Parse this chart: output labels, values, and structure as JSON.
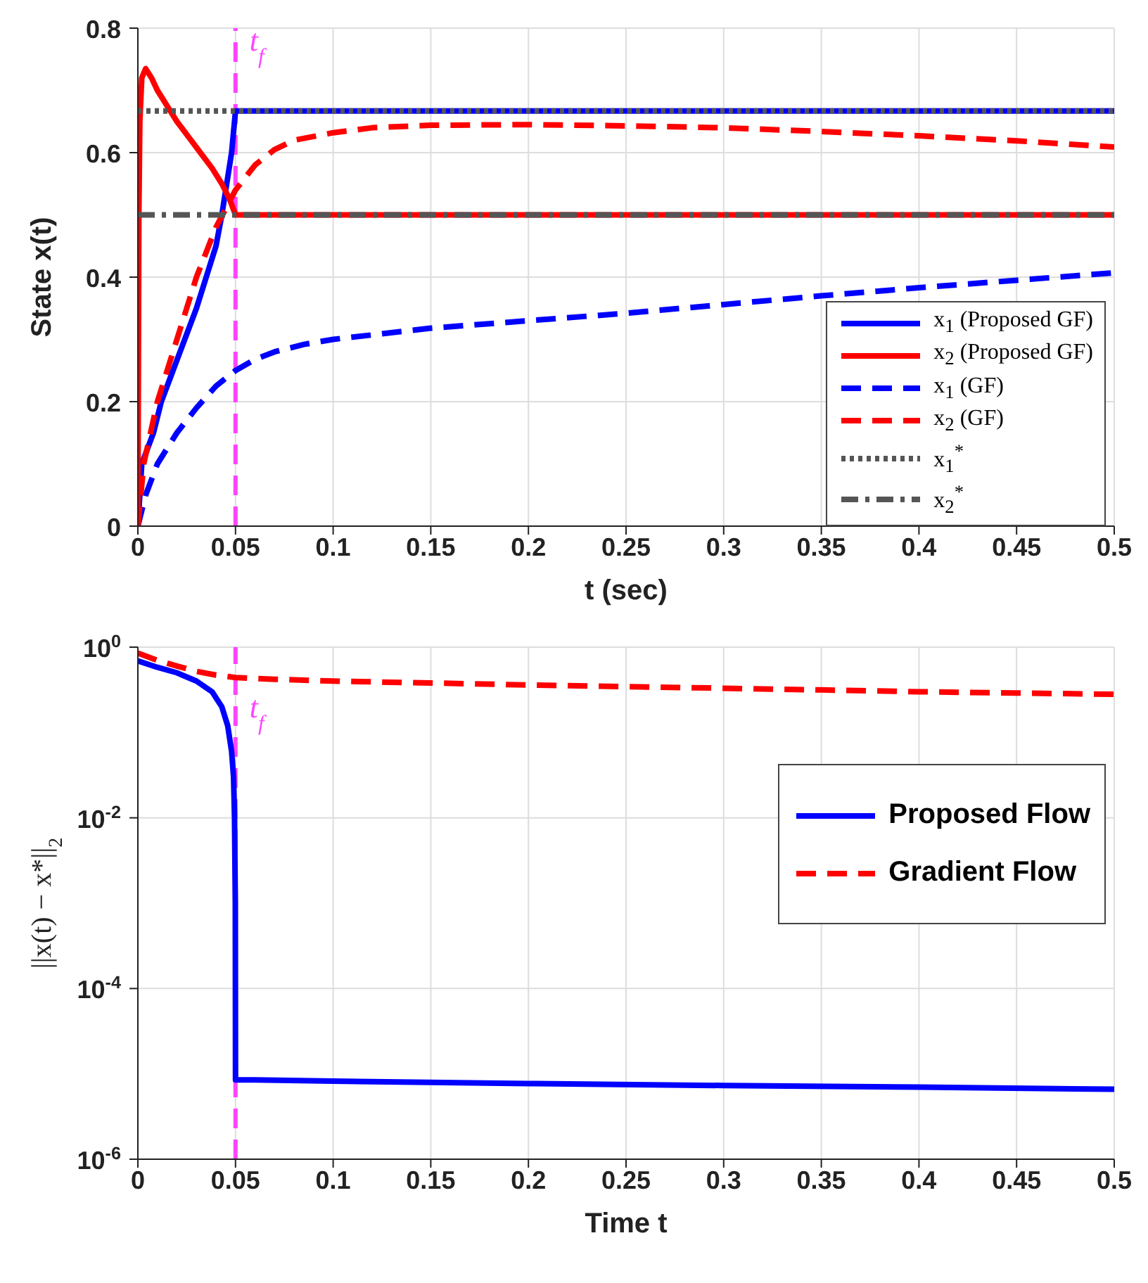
{
  "chart_data": [
    {
      "type": "line",
      "xlabel": "t (sec)",
      "ylabel": "State x(t)",
      "xlim": [
        0,
        0.5
      ],
      "xticks": [
        0,
        0.05,
        0.1,
        0.15,
        0.2,
        0.25,
        0.3,
        0.35,
        0.4,
        0.45,
        0.5
      ],
      "ylim": [
        0,
        0.8
      ],
      "yticks": [
        0,
        0.2,
        0.4,
        0.6,
        0.8
      ],
      "grid": true,
      "legend": "bottom right",
      "series": [
        {
          "name": "x$_{1}$ (Proposed GF)",
          "color": "#0000ff",
          "line_style": "solid",
          "x": [
            0,
            0.002,
            0.008,
            0.012,
            0.018,
            0.024,
            0.03,
            0.035,
            0.04,
            0.043,
            0.046,
            0.048,
            0.05,
            0.5
          ],
          "values": [
            0,
            0.1,
            0.15,
            0.2,
            0.25,
            0.3,
            0.35,
            0.4,
            0.45,
            0.5,
            0.56,
            0.6,
            0.667,
            0.667
          ]
        },
        {
          "name": "x$_{2}$ (Proposed GF)",
          "color": "#ff0000",
          "line_style": "solid",
          "x": [
            0,
            0.0005,
            0.001,
            0.002,
            0.004,
            0.007,
            0.01,
            0.015,
            0.02,
            0.026,
            0.032,
            0.038,
            0.043,
            0.047,
            0.05,
            0.5
          ],
          "values": [
            0,
            0.5,
            0.65,
            0.72,
            0.735,
            0.72,
            0.7,
            0.675,
            0.65,
            0.625,
            0.6,
            0.575,
            0.55,
            0.525,
            0.5,
            0.5
          ]
        },
        {
          "name": "x$_{1}$ (GF)",
          "color": "#0000ff",
          "line_style": "dashed",
          "x": [
            0,
            0.004,
            0.01,
            0.02,
            0.03,
            0.04,
            0.05,
            0.06,
            0.07,
            0.085,
            0.1,
            0.15,
            0.2,
            0.25,
            0.3,
            0.35,
            0.4,
            0.45,
            0.5
          ],
          "values": [
            0,
            0.05,
            0.1,
            0.15,
            0.19,
            0.225,
            0.25,
            0.268,
            0.28,
            0.292,
            0.3,
            0.318,
            0.33,
            0.342,
            0.356,
            0.37,
            0.383,
            0.395,
            0.407
          ]
        },
        {
          "name": "x$_{2}$ (GF)",
          "color": "#ff0000",
          "line_style": "dashed",
          "x": [
            0,
            0.003,
            0.01,
            0.02,
            0.03,
            0.04,
            0.05,
            0.06,
            0.07,
            0.08,
            0.1,
            0.12,
            0.15,
            0.2,
            0.25,
            0.3,
            0.35,
            0.4,
            0.45,
            0.5
          ],
          "values": [
            0,
            0.1,
            0.2,
            0.3,
            0.4,
            0.48,
            0.54,
            0.58,
            0.605,
            0.62,
            0.632,
            0.64,
            0.644,
            0.645,
            0.643,
            0.64,
            0.634,
            0.627,
            0.619,
            0.609
          ]
        },
        {
          "name": "x$_{1}$$^{*}$",
          "color": "#555555",
          "line_style": "dotted",
          "x": [
            0,
            0.5
          ],
          "values": [
            0.667,
            0.667
          ]
        },
        {
          "name": "x$_{2}$$^{*}$",
          "color": "#555555",
          "line_style": "dashdot",
          "x": [
            0,
            0.5
          ],
          "values": [
            0.5,
            0.5
          ]
        }
      ],
      "ref_lines": [
        {
          "axis": "x",
          "value": 0.05,
          "label": "t$_{f}$",
          "color": "#ff44ff",
          "line_style": "dashed"
        }
      ]
    },
    {
      "type": "line",
      "xlabel": "Time t",
      "ylabel": "||x(t) − x*||$_{2}$",
      "log": "y",
      "xlim": [
        0,
        0.5
      ],
      "xticks": [
        0,
        0.05,
        0.1,
        0.15,
        0.2,
        0.25,
        0.3,
        0.35,
        0.4,
        0.45,
        0.5
      ],
      "ylim": [
        1e-06,
        1
      ],
      "yticks": [
        {
          "value": 1e-06,
          "label": "10$^{-6}$"
        },
        {
          "value": 0.0001,
          "label": "10$^{-4}$"
        },
        {
          "value": 0.01,
          "label": "10$^{-2}$"
        },
        {
          "value": 1,
          "label": "10$^{0}$"
        }
      ],
      "grid": true,
      "legend": "right",
      "series": [
        {
          "name": "Proposed Flow",
          "color": "#0000ff",
          "line_style": "solid",
          "x": [
            0,
            0.01,
            0.02,
            0.03,
            0.038,
            0.043,
            0.046,
            0.048,
            0.049,
            0.0495,
            0.0499,
            0.05,
            0.06,
            0.1,
            0.2,
            0.3,
            0.4,
            0.5
          ],
          "values": [
            0.69,
            0.58,
            0.5,
            0.4,
            0.3,
            0.2,
            0.12,
            0.06,
            0.03,
            0.01,
            0.001,
            8.5e-06,
            8.5e-06,
            8.2e-06,
            7.7e-06,
            7.3e-06,
            7e-06,
            6.6e-06
          ]
        },
        {
          "name": "Gradient Flow",
          "color": "#ff0000",
          "line_style": "dashed",
          "x": [
            0,
            0.01,
            0.02,
            0.03,
            0.04,
            0.05,
            0.07,
            0.1,
            0.15,
            0.2,
            0.25,
            0.3,
            0.35,
            0.4,
            0.45,
            0.5
          ],
          "values": [
            0.85,
            0.7,
            0.6,
            0.52,
            0.47,
            0.44,
            0.42,
            0.4,
            0.38,
            0.36,
            0.345,
            0.33,
            0.315,
            0.3,
            0.29,
            0.28
          ]
        }
      ],
      "ref_lines": [
        {
          "axis": "x",
          "value": 0.05,
          "label": "t$_{f}$",
          "color": "#ff44ff",
          "line_style": "dashed"
        }
      ]
    }
  ]
}
